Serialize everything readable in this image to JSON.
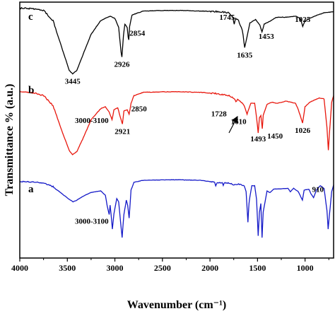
{
  "chart_data": {
    "type": "line",
    "xlabel": "Wavenumber (cm⁻¹)",
    "ylabel": "Transmittance  % (a.u.)",
    "xlim": [
      4000,
      700
    ],
    "x_reversed": true,
    "x_ticks": [
      4000,
      3500,
      3000,
      2500,
      2000,
      1500,
      1000
    ],
    "y_ticks_shown": false,
    "grid": false,
    "legend": "none",
    "series": [
      {
        "name": "c",
        "color": "#000000",
        "points": [
          [
            4000,
            0.1
          ],
          [
            3850,
            0.15
          ],
          [
            3750,
            0.3
          ],
          [
            3650,
            1.2
          ],
          [
            3550,
            3.8
          ],
          [
            3480,
            5.6
          ],
          [
            3445,
            5.9
          ],
          [
            3400,
            5.6
          ],
          [
            3330,
            4.1
          ],
          [
            3250,
            2.4
          ],
          [
            3150,
            1.2
          ],
          [
            3050,
            0.8
          ],
          [
            3000,
            1.0
          ],
          [
            2960,
            1.8
          ],
          [
            2935,
            4.0
          ],
          [
            2926,
            4.4
          ],
          [
            2910,
            2.5
          ],
          [
            2895,
            1.5
          ],
          [
            2870,
            1.8
          ],
          [
            2860,
            2.7
          ],
          [
            2854,
            2.9
          ],
          [
            2845,
            1.7
          ],
          [
            2820,
            0.7
          ],
          [
            2700,
            0.35
          ],
          [
            2500,
            0.3
          ],
          [
            2300,
            0.3
          ],
          [
            2100,
            0.35
          ],
          [
            1900,
            0.4
          ],
          [
            1800,
            0.5
          ],
          [
            1760,
            0.9
          ],
          [
            1745,
            1.5
          ],
          [
            1730,
            1.0
          ],
          [
            1700,
            1.2
          ],
          [
            1660,
            2.0
          ],
          [
            1635,
            3.6
          ],
          [
            1620,
            3.0
          ],
          [
            1580,
            1.4
          ],
          [
            1520,
            1.1
          ],
          [
            1475,
            1.6
          ],
          [
            1453,
            2.2
          ],
          [
            1430,
            1.5
          ],
          [
            1380,
            1.3
          ],
          [
            1300,
            0.9
          ],
          [
            1200,
            0.9
          ],
          [
            1100,
            0.8
          ],
          [
            1050,
            1.0
          ],
          [
            1025,
            1.7
          ],
          [
            1000,
            1.2
          ],
          [
            900,
            0.8
          ],
          [
            800,
            0.5
          ],
          [
            700,
            0.4
          ]
        ],
        "peak_labels": [
          {
            "wavenumber": 3445,
            "text": "3445"
          },
          {
            "wavenumber": 2926,
            "text": "2926"
          },
          {
            "wavenumber": 2854,
            "text": "2854"
          },
          {
            "wavenumber": 1745,
            "text": "1745"
          },
          {
            "wavenumber": 1635,
            "text": "1635"
          },
          {
            "wavenumber": 1453,
            "text": "1453"
          },
          {
            "wavenumber": 1025,
            "text": "1025"
          }
        ]
      },
      {
        "name": "b",
        "color": "#e8160c",
        "points": [
          [
            4000,
            0.2
          ],
          [
            3850,
            0.35
          ],
          [
            3750,
            0.6
          ],
          [
            3650,
            1.5
          ],
          [
            3550,
            4.0
          ],
          [
            3480,
            5.6
          ],
          [
            3445,
            6.0
          ],
          [
            3400,
            5.7
          ],
          [
            3340,
            4.6
          ],
          [
            3250,
            2.8
          ],
          [
            3150,
            1.8
          ],
          [
            3100,
            1.6
          ],
          [
            3060,
            2.1
          ],
          [
            3030,
            2.8
          ],
          [
            3010,
            1.9
          ],
          [
            2970,
            1.7
          ],
          [
            2935,
            2.8
          ],
          [
            2921,
            3.2
          ],
          [
            2905,
            2.0
          ],
          [
            2870,
            1.9
          ],
          [
            2850,
            2.3
          ],
          [
            2830,
            1.3
          ],
          [
            2800,
            0.6
          ],
          [
            2700,
            0.3
          ],
          [
            2500,
            0.25
          ],
          [
            2300,
            0.25
          ],
          [
            2100,
            0.3
          ],
          [
            1950,
            0.4
          ],
          [
            1900,
            0.45
          ],
          [
            1800,
            0.6
          ],
          [
            1740,
            0.9
          ],
          [
            1728,
            1.2
          ],
          [
            1710,
            0.9
          ],
          [
            1680,
            1.1
          ],
          [
            1640,
            1.5
          ],
          [
            1610,
            2.3
          ],
          [
            1600,
            2.0
          ],
          [
            1570,
            1.3
          ],
          [
            1530,
            1.3
          ],
          [
            1510,
            2.6
          ],
          [
            1493,
            4.0
          ],
          [
            1480,
            2.6
          ],
          [
            1465,
            2.4
          ],
          [
            1450,
            3.6
          ],
          [
            1440,
            2.4
          ],
          [
            1400,
            1.4
          ],
          [
            1350,
            1.2
          ],
          [
            1300,
            1.3
          ],
          [
            1200,
            1.1
          ],
          [
            1100,
            1.3
          ],
          [
            1070,
            1.9
          ],
          [
            1026,
            3.1
          ],
          [
            1000,
            1.6
          ],
          [
            950,
            1.2
          ],
          [
            900,
            1.0
          ],
          [
            850,
            0.8
          ],
          [
            800,
            0.9
          ],
          [
            770,
            3.5
          ],
          [
            755,
            5.6
          ],
          [
            745,
            4.2
          ],
          [
            720,
            1.2
          ],
          [
            700,
            0.6
          ]
        ],
        "peak_labels": [
          {
            "wavenumber": 3050,
            "text": "3000-3100"
          },
          {
            "wavenumber": 2921,
            "text": "2921"
          },
          {
            "wavenumber": 2850,
            "text": "2850"
          },
          {
            "wavenumber": 1728,
            "text": "1728"
          },
          {
            "wavenumber": 1610,
            "text": "1610"
          },
          {
            "wavenumber": 1493,
            "text": "1493"
          },
          {
            "wavenumber": 1450,
            "text": "1450"
          },
          {
            "wavenumber": 1026,
            "text": "1026"
          }
        ]
      },
      {
        "name": "a",
        "color": "#1419c8",
        "points": [
          [
            4000,
            0.4
          ],
          [
            3850,
            0.45
          ],
          [
            3750,
            0.6
          ],
          [
            3650,
            1.0
          ],
          [
            3550,
            1.9
          ],
          [
            3480,
            2.5
          ],
          [
            3440,
            2.8
          ],
          [
            3400,
            2.6
          ],
          [
            3330,
            2.1
          ],
          [
            3250,
            1.7
          ],
          [
            3150,
            1.5
          ],
          [
            3100,
            2.0
          ],
          [
            3082,
            3.2
          ],
          [
            3060,
            4.3
          ],
          [
            3050,
            3.2
          ],
          [
            3040,
            4.3
          ],
          [
            3026,
            6.0
          ],
          [
            3010,
            4.2
          ],
          [
            2980,
            2.4
          ],
          [
            2960,
            2.8
          ],
          [
            2940,
            5.2
          ],
          [
            2924,
            7.0
          ],
          [
            2905,
            4.3
          ],
          [
            2880,
            2.6
          ],
          [
            2865,
            3.2
          ],
          [
            2850,
            4.7
          ],
          [
            2830,
            1.4
          ],
          [
            2800,
            0.5
          ],
          [
            2700,
            0.25
          ],
          [
            2500,
            0.2
          ],
          [
            2300,
            0.2
          ],
          [
            2100,
            0.25
          ],
          [
            1950,
            0.5
          ],
          [
            1940,
            0.9
          ],
          [
            1925,
            0.5
          ],
          [
            1870,
            0.55
          ],
          [
            1860,
            0.9
          ],
          [
            1850,
            0.55
          ],
          [
            1800,
            0.6
          ],
          [
            1740,
            0.8
          ],
          [
            1700,
            0.7
          ],
          [
            1640,
            0.9
          ],
          [
            1620,
            1.6
          ],
          [
            1601,
            5.2
          ],
          [
            1590,
            3.0
          ],
          [
            1580,
            2.2
          ],
          [
            1560,
            0.9
          ],
          [
            1530,
            0.9
          ],
          [
            1510,
            2.5
          ],
          [
            1493,
            6.8
          ],
          [
            1480,
            4.0
          ],
          [
            1465,
            3.0
          ],
          [
            1452,
            7.0
          ],
          [
            1440,
            4.0
          ],
          [
            1400,
            1.5
          ],
          [
            1370,
            1.7
          ],
          [
            1330,
            1.3
          ],
          [
            1180,
            1.2
          ],
          [
            1155,
            1.6
          ],
          [
            1120,
            1.2
          ],
          [
            1070,
            1.6
          ],
          [
            1028,
            2.6
          ],
          [
            1010,
            1.4
          ],
          [
            960,
            1.3
          ],
          [
            940,
            1.8
          ],
          [
            910,
            2.3
          ],
          [
            880,
            1.4
          ],
          [
            840,
            0.9
          ],
          [
            800,
            1.2
          ],
          [
            770,
            3.8
          ],
          [
            757,
            6.0
          ],
          [
            745,
            4.5
          ],
          [
            720,
            1.6
          ],
          [
            700,
            0.8
          ]
        ],
        "peak_labels": [
          {
            "wavenumber": 3050,
            "text": "3000-3100"
          },
          {
            "wavenumber": 910,
            "text": "910"
          }
        ]
      }
    ],
    "annotations": [
      {
        "type": "arrow",
        "from_wavenumber": 1800,
        "to_wavenumber": 1715,
        "series": "b"
      }
    ]
  }
}
